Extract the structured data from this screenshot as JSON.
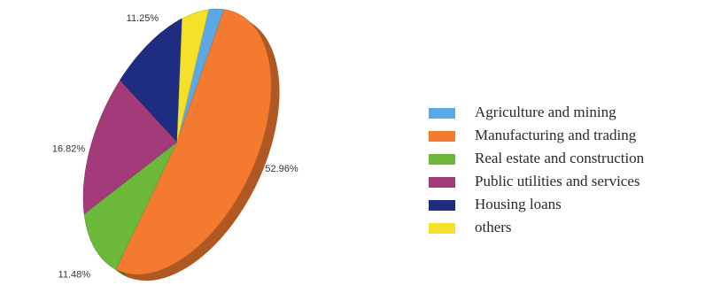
{
  "chart_data": {
    "type": "pie",
    "title": "",
    "legend_position": "right",
    "slices": [
      {
        "label": "Agriculture and mining",
        "value": 2.9,
        "display": "2.90%",
        "color": "#5aa8e6"
      },
      {
        "label": "Manufacturing and trading",
        "value": 52.96,
        "display": "52.96%",
        "color": "#f47a30"
      },
      {
        "label": "Real estate and construction",
        "value": 11.48,
        "display": "11.48%",
        "color": "#6cb83a"
      },
      {
        "label": "Public utilities and services",
        "value": 16.82,
        "display": "16.82%",
        "color": "#a33a7a"
      },
      {
        "label": "Housing loans",
        "value": 11.25,
        "display": "11.25%",
        "color": "#1f2d80"
      },
      {
        "label": "others",
        "value": 4.59,
        "display": "4.59%",
        "color": "#f5e02a"
      }
    ]
  }
}
